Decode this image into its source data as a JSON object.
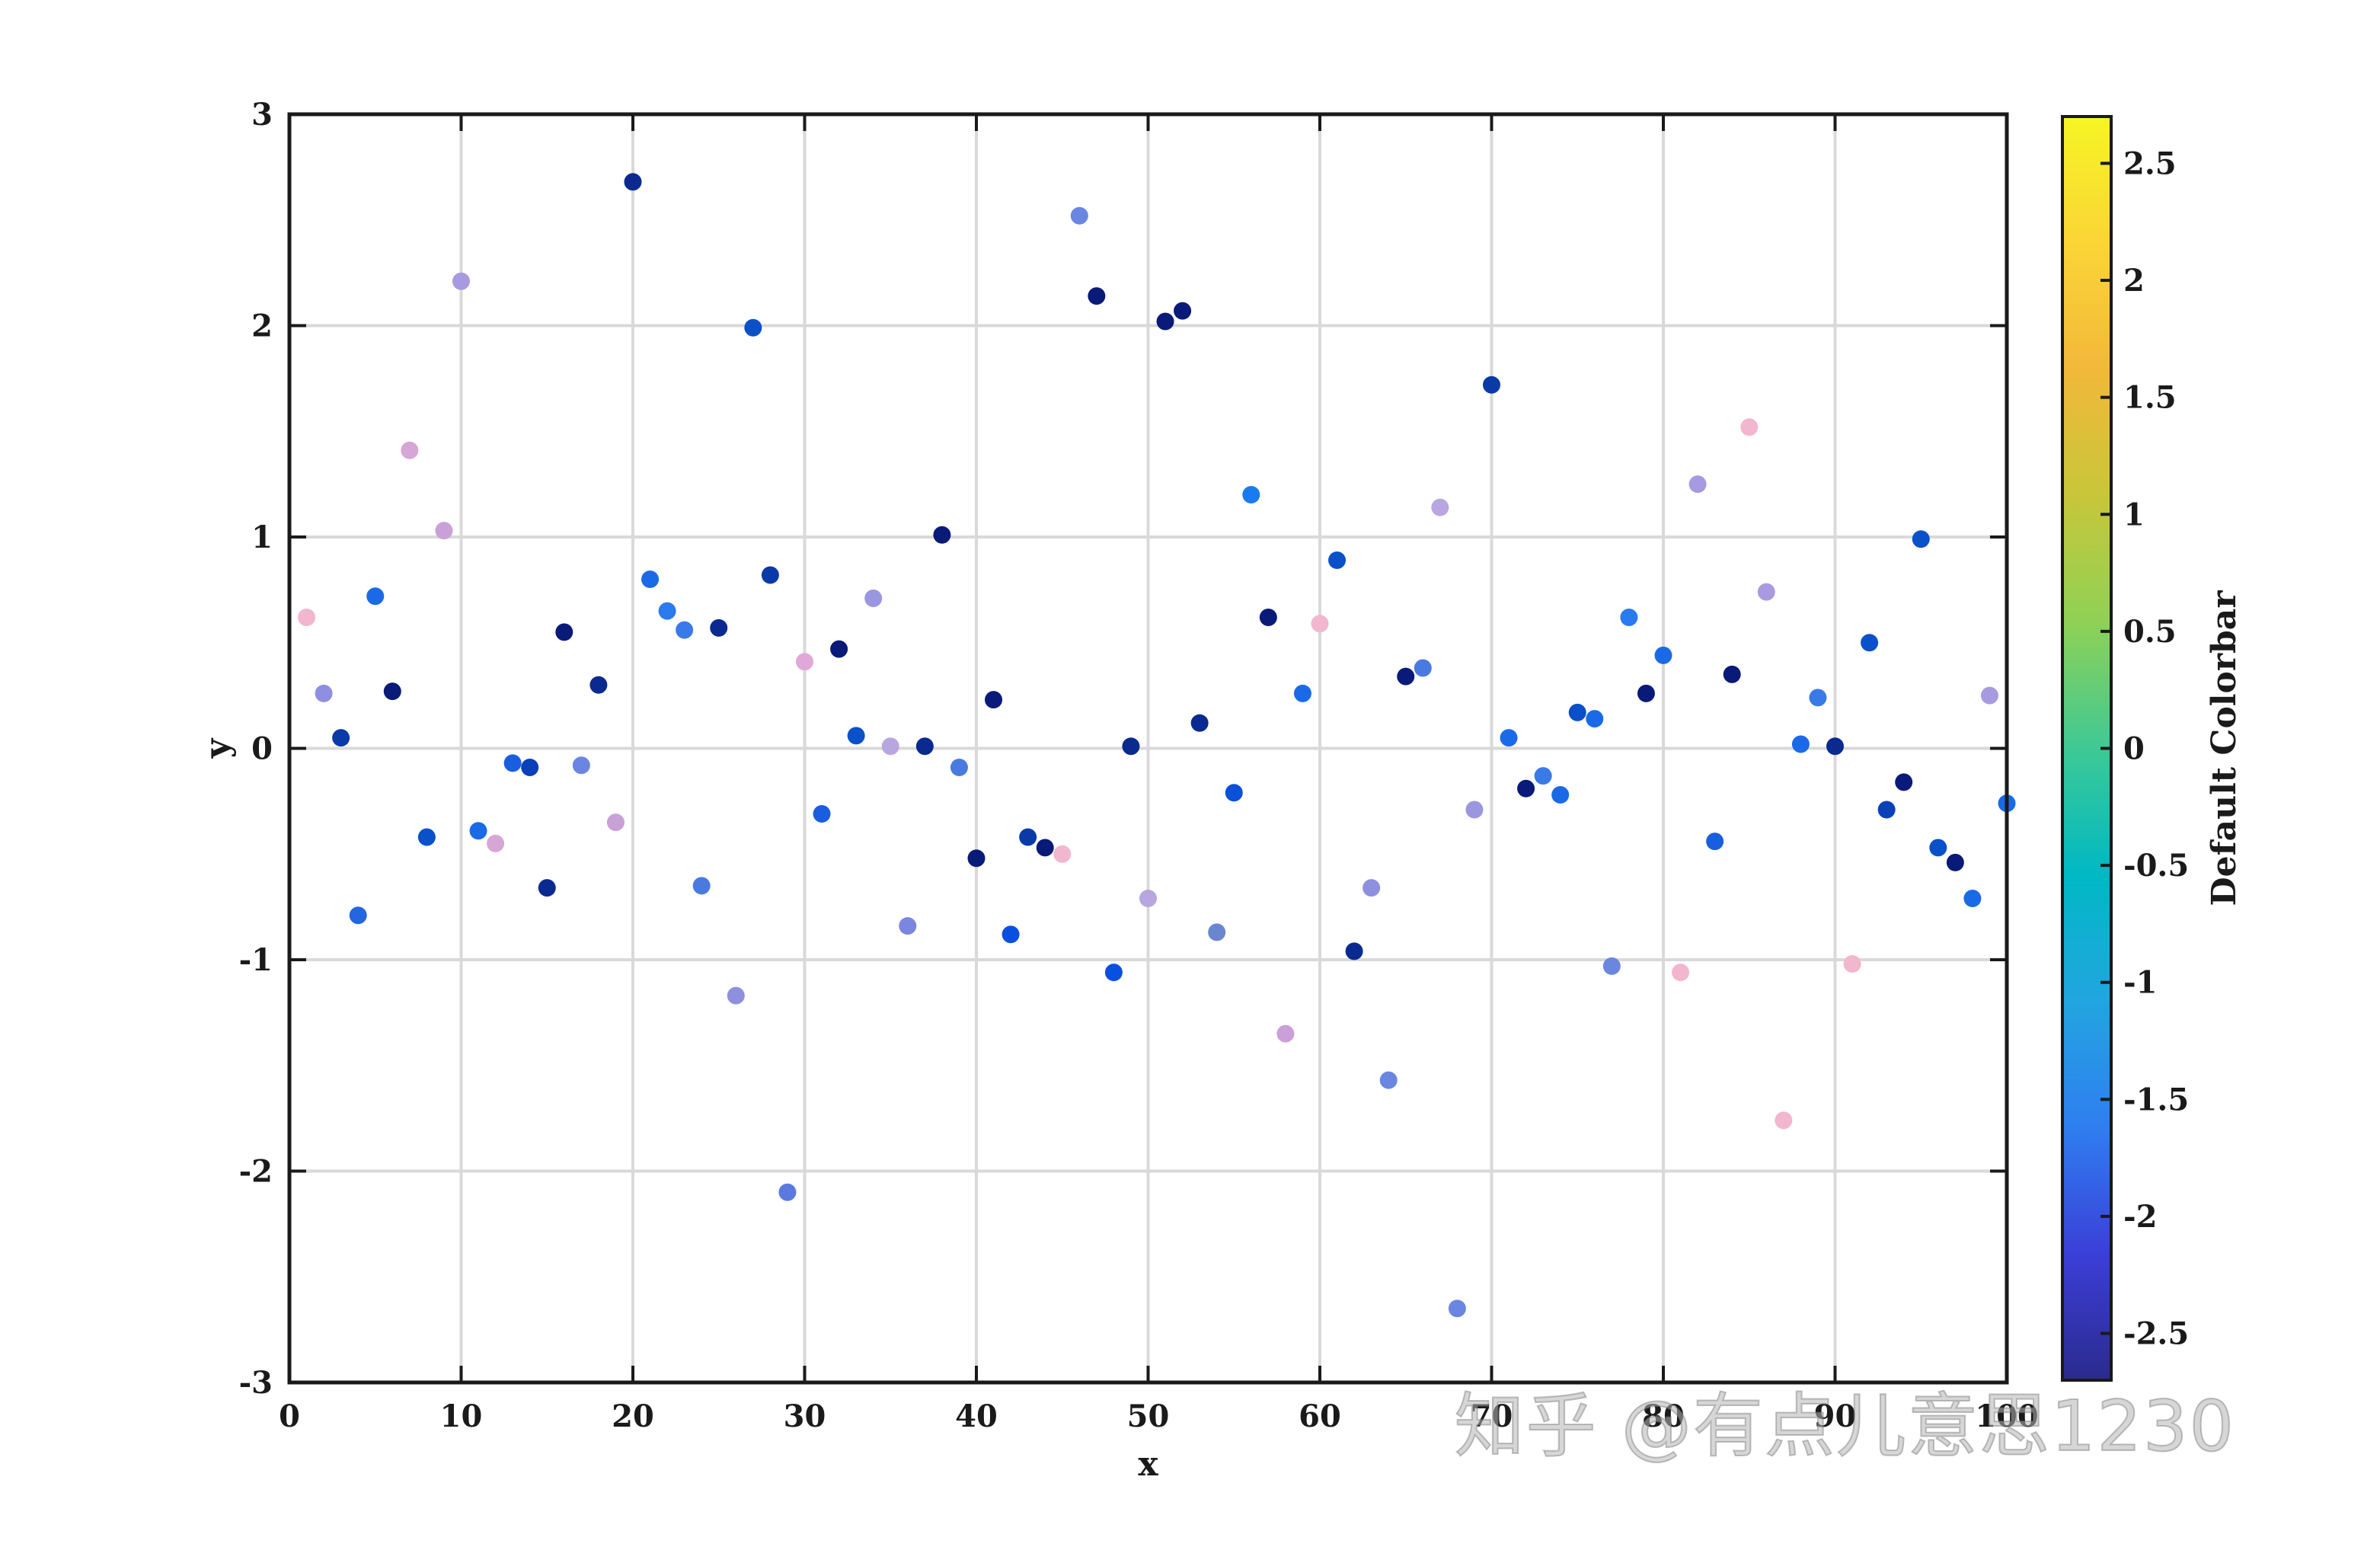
{
  "chart_data": {
    "type": "scatter",
    "xlabel": "x",
    "ylabel": "y",
    "xlim": [
      0,
      100
    ],
    "ylim": [
      -3,
      3
    ],
    "xticks": [
      "0",
      "10",
      "20",
      "30",
      "40",
      "50",
      "60",
      "70",
      "80",
      "90",
      "100"
    ],
    "yticks": [
      "-3",
      "-2",
      "-1",
      "0",
      "1",
      "2",
      "3"
    ],
    "grid": true,
    "colorbar": {
      "label": "Default Colorbar",
      "range": [
        -2.7,
        2.7
      ],
      "ticks": [
        "-2.5",
        "-2",
        "-1.5",
        "-1",
        "-0.5",
        "0",
        "0.5",
        "1",
        "1.5",
        "2",
        "2.5"
      ],
      "stops": [
        "#2b2a8f",
        "#3b3fd8",
        "#2f7ef0",
        "#22a5e0",
        "#00b8c4",
        "#3ec995",
        "#8fd155",
        "#c8c63a",
        "#f2b83a",
        "#fbd536",
        "#f5f524"
      ]
    },
    "points": [
      {
        "x": 1,
        "y": 0.62,
        "color": "#f2b6cf"
      },
      {
        "x": 2,
        "y": 0.26,
        "color": "#8f8fe0"
      },
      {
        "x": 3,
        "y": 0.05,
        "color": "#0a3aa8"
      },
      {
        "x": 4,
        "y": -0.79,
        "color": "#2266e0"
      },
      {
        "x": 5,
        "y": 0.72,
        "color": "#1a6ae8"
      },
      {
        "x": 6,
        "y": 0.27,
        "color": "#0a1a78"
      },
      {
        "x": 7,
        "y": 1.41,
        "color": "#d6a6d6"
      },
      {
        "x": 8,
        "y": -0.42,
        "color": "#0a50c8"
      },
      {
        "x": 9,
        "y": 1.03,
        "color": "#c9a0d8"
      },
      {
        "x": 10,
        "y": 2.21,
        "color": "#a89ae0"
      },
      {
        "x": 11,
        "y": -0.39,
        "color": "#1a6ae8"
      },
      {
        "x": 12,
        "y": -0.45,
        "color": "#d6a6d6"
      },
      {
        "x": 13,
        "y": -0.07,
        "color": "#1a5ee0"
      },
      {
        "x": 14,
        "y": -0.09,
        "color": "#0a40b8"
      },
      {
        "x": 15,
        "y": -0.66,
        "color": "#0a2a90"
      },
      {
        "x": 16,
        "y": 0.55,
        "color": "#0a1a78"
      },
      {
        "x": 17,
        "y": -0.08,
        "color": "#6a86e0"
      },
      {
        "x": 18,
        "y": 0.3,
        "color": "#0a2a90"
      },
      {
        "x": 19,
        "y": -0.35,
        "color": "#c9a0d8"
      },
      {
        "x": 20,
        "y": 2.68,
        "color": "#0a2a90"
      },
      {
        "x": 21,
        "y": 0.8,
        "color": "#1a6ae8"
      },
      {
        "x": 22,
        "y": 0.65,
        "color": "#2a7af0"
      },
      {
        "x": 23,
        "y": 0.56,
        "color": "#3a7ae8"
      },
      {
        "x": 24,
        "y": -0.65,
        "color": "#4a7ae0"
      },
      {
        "x": 25,
        "y": 0.57,
        "color": "#0a2a90"
      },
      {
        "x": 26,
        "y": -1.17,
        "color": "#8f8fe0"
      },
      {
        "x": 27,
        "y": 1.99,
        "color": "#0a50c8"
      },
      {
        "x": 28,
        "y": 0.82,
        "color": "#0a3aa8"
      },
      {
        "x": 29,
        "y": -2.1,
        "color": "#5a7ae0"
      },
      {
        "x": 30,
        "y": 0.41,
        "color": "#e0a8d8"
      },
      {
        "x": 31,
        "y": -0.31,
        "color": "#1a5ee0"
      },
      {
        "x": 32,
        "y": 0.47,
        "color": "#0a1a78"
      },
      {
        "x": 33,
        "y": 0.06,
        "color": "#0a50c8"
      },
      {
        "x": 34,
        "y": 0.71,
        "color": "#9a96e0"
      },
      {
        "x": 35,
        "y": 0.01,
        "color": "#b8a6e0"
      },
      {
        "x": 36,
        "y": -0.84,
        "color": "#7a86e0"
      },
      {
        "x": 37,
        "y": 0.01,
        "color": "#0a2a90"
      },
      {
        "x": 38,
        "y": 1.01,
        "color": "#0a1a78"
      },
      {
        "x": 39,
        "y": -0.09,
        "color": "#4a7ae0"
      },
      {
        "x": 40,
        "y": -0.52,
        "color": "#0a1a78"
      },
      {
        "x": 41,
        "y": 0.23,
        "color": "#0a1a78"
      },
      {
        "x": 42,
        "y": -0.88,
        "color": "#0a50e0"
      },
      {
        "x": 43,
        "y": -0.42,
        "color": "#0a3aa8"
      },
      {
        "x": 44,
        "y": -0.47,
        "color": "#0a1a78"
      },
      {
        "x": 45,
        "y": -0.5,
        "color": "#f2b6cf"
      },
      {
        "x": 46,
        "y": 2.52,
        "color": "#6a86e0"
      },
      {
        "x": 47,
        "y": 2.14,
        "color": "#0a1a78"
      },
      {
        "x": 48,
        "y": -1.06,
        "color": "#0a50e0"
      },
      {
        "x": 49,
        "y": 0.01,
        "color": "#0a2a90"
      },
      {
        "x": 50,
        "y": -0.71,
        "color": "#b8a6e0"
      },
      {
        "x": 51,
        "y": 2.02,
        "color": "#0a1a78"
      },
      {
        "x": 52,
        "y": 2.07,
        "color": "#0a1a78"
      },
      {
        "x": 53,
        "y": 0.12,
        "color": "#0a2a90"
      },
      {
        "x": 54,
        "y": -0.87,
        "color": "#6a86d0"
      },
      {
        "x": 55,
        "y": -0.21,
        "color": "#0a50d8"
      },
      {
        "x": 56,
        "y": 1.2,
        "color": "#1a7af0"
      },
      {
        "x": 57,
        "y": 0.62,
        "color": "#0a1a78"
      },
      {
        "x": 58,
        "y": -1.35,
        "color": "#c9a0d8"
      },
      {
        "x": 59,
        "y": 0.26,
        "color": "#1a6ae8"
      },
      {
        "x": 60,
        "y": 0.59,
        "color": "#f2b6cf"
      },
      {
        "x": 61,
        "y": 0.89,
        "color": "#0a50c8"
      },
      {
        "x": 62,
        "y": -0.96,
        "color": "#0a2a90"
      },
      {
        "x": 63,
        "y": -0.66,
        "color": "#8f8fe0"
      },
      {
        "x": 64,
        "y": -1.57,
        "color": "#6a86e0"
      },
      {
        "x": 65,
        "y": 0.34,
        "color": "#0a1a78"
      },
      {
        "x": 66,
        "y": 0.38,
        "color": "#4a7ae0"
      },
      {
        "x": 67,
        "y": 1.14,
        "color": "#b8a6e0"
      },
      {
        "x": 68,
        "y": -2.65,
        "color": "#6a86e0"
      },
      {
        "x": 69,
        "y": -0.29,
        "color": "#9a96e0"
      },
      {
        "x": 70,
        "y": 1.72,
        "color": "#0a3aa8"
      },
      {
        "x": 71,
        "y": 0.05,
        "color": "#1a6ae8"
      },
      {
        "x": 72,
        "y": -0.19,
        "color": "#0a1a78"
      },
      {
        "x": 73,
        "y": -0.13,
        "color": "#3a7ae8"
      },
      {
        "x": 74,
        "y": -0.22,
        "color": "#1a6ae8"
      },
      {
        "x": 75,
        "y": 0.17,
        "color": "#0a50c8"
      },
      {
        "x": 76,
        "y": 0.14,
        "color": "#1a6ae8"
      },
      {
        "x": 77,
        "y": -1.03,
        "color": "#6a86e0"
      },
      {
        "x": 78,
        "y": 0.62,
        "color": "#2a7af0"
      },
      {
        "x": 79,
        "y": 0.26,
        "color": "#0a1a78"
      },
      {
        "x": 80,
        "y": 0.44,
        "color": "#1a6ae8"
      },
      {
        "x": 81,
        "y": -1.06,
        "color": "#f2b6cf"
      },
      {
        "x": 82,
        "y": 1.25,
        "color": "#a89ae0"
      },
      {
        "x": 83,
        "y": -0.44,
        "color": "#1a5ee0"
      },
      {
        "x": 84,
        "y": 0.35,
        "color": "#0a1a78"
      },
      {
        "x": 85,
        "y": 1.52,
        "color": "#f2b6cf"
      },
      {
        "x": 86,
        "y": 0.74,
        "color": "#a89ae0"
      },
      {
        "x": 87,
        "y": -1.76,
        "color": "#f2b6cf"
      },
      {
        "x": 88,
        "y": 0.02,
        "color": "#1a6ae8"
      },
      {
        "x": 89,
        "y": 0.24,
        "color": "#3a7ae8"
      },
      {
        "x": 90,
        "y": 0.01,
        "color": "#0a2a90"
      },
      {
        "x": 91,
        "y": -1.02,
        "color": "#f2b6cf"
      },
      {
        "x": 92,
        "y": 0.5,
        "color": "#0a50c8"
      },
      {
        "x": 93,
        "y": -0.29,
        "color": "#0a40b8"
      },
      {
        "x": 94,
        "y": -0.16,
        "color": "#0a1a78"
      },
      {
        "x": 95,
        "y": 0.99,
        "color": "#0a50c8"
      },
      {
        "x": 96,
        "y": -0.47,
        "color": "#0a50c8"
      },
      {
        "x": 97,
        "y": -0.54,
        "color": "#0a1a78"
      },
      {
        "x": 98,
        "y": -0.71,
        "color": "#1a6ae8"
      },
      {
        "x": 99,
        "y": 0.25,
        "color": "#a89ae0"
      },
      {
        "x": 100,
        "y": -0.26,
        "color": "#1a6ae8"
      }
    ]
  },
  "watermark": "知乎 @有点儿意思1230"
}
